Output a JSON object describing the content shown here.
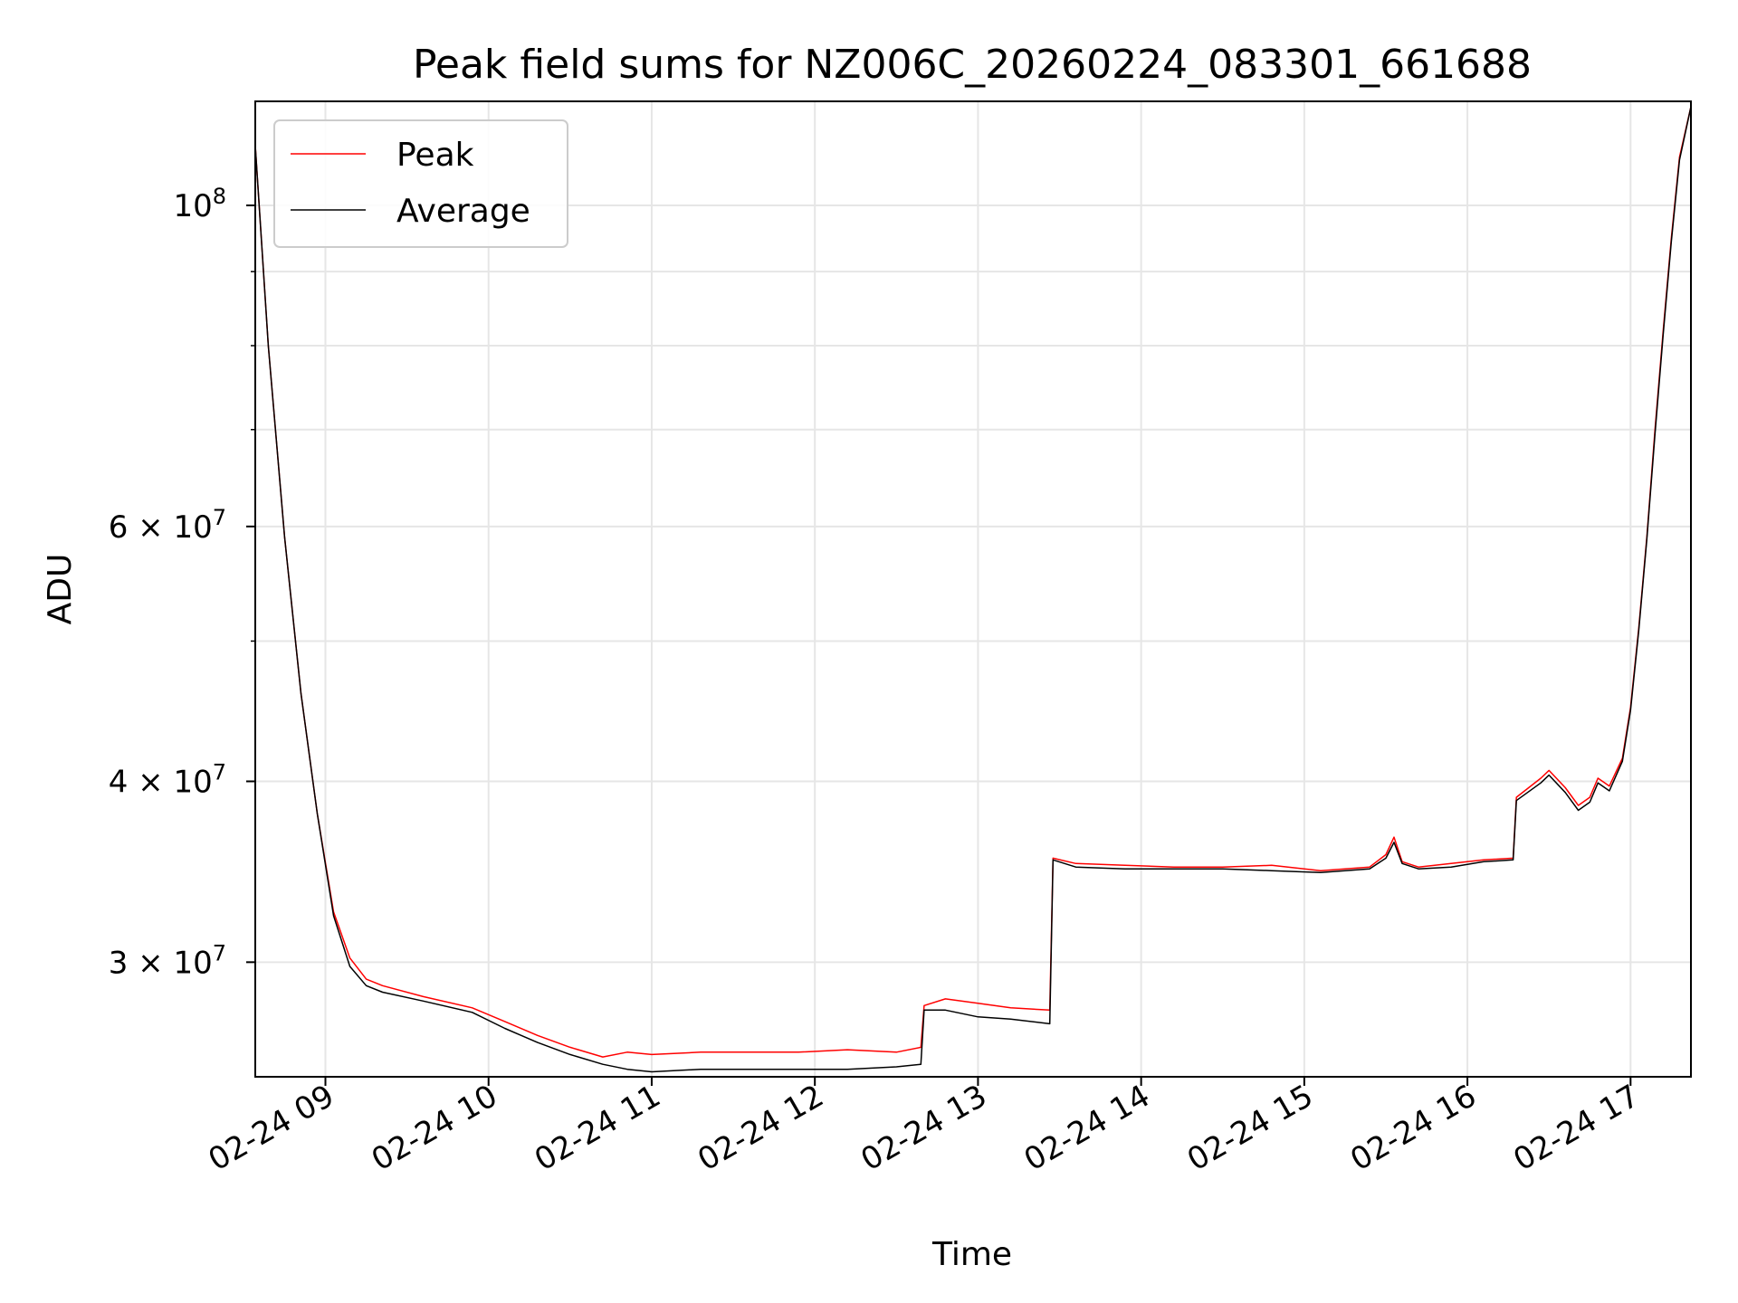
{
  "chart_data": {
    "type": "line",
    "title": "Peak field sums for NZ006C_20260224_083301_661688",
    "xlabel": "Time",
    "ylabel": "ADU",
    "yscale": "log",
    "xlim": [
      8.57,
      17.37
    ],
    "ylim": [
      25000000,
      118000000
    ],
    "grid": true,
    "legend_loc": "upper-left",
    "x_ticks": [
      {
        "value": 9,
        "label": "02-24 09"
      },
      {
        "value": 10,
        "label": "02-24 10"
      },
      {
        "value": 11,
        "label": "02-24 11"
      },
      {
        "value": 12,
        "label": "02-24 12"
      },
      {
        "value": 13,
        "label": "02-24 13"
      },
      {
        "value": 14,
        "label": "02-24 14"
      },
      {
        "value": 15,
        "label": "02-24 15"
      },
      {
        "value": 16,
        "label": "02-24 16"
      },
      {
        "value": 17,
        "label": "02-24 17"
      }
    ],
    "y_major_ticks": [
      {
        "value": 100000000,
        "mantissa": "10",
        "exp": "8"
      },
      {
        "value": 60000000,
        "mantissa": "6 × 10",
        "exp": "7"
      },
      {
        "value": 40000000,
        "mantissa": "4 × 10",
        "exp": "7"
      },
      {
        "value": 30000000,
        "mantissa": "3 × 10",
        "exp": "7"
      }
    ],
    "y_minor_ticks": [
      50000000,
      70000000,
      80000000,
      90000000
    ],
    "series": [
      {
        "name": "Peak",
        "color": "#ff0000",
        "x": [
          8.57,
          8.65,
          8.75,
          8.85,
          8.95,
          9.05,
          9.15,
          9.25,
          9.35,
          9.6,
          9.9,
          10.1,
          10.3,
          10.5,
          10.7,
          10.85,
          11.0,
          11.3,
          11.6,
          11.9,
          12.2,
          12.5,
          12.65,
          12.67,
          12.8,
          13.0,
          13.2,
          13.44,
          13.46,
          13.6,
          13.9,
          14.2,
          14.5,
          14.8,
          15.1,
          15.4,
          15.5,
          15.55,
          15.6,
          15.7,
          15.9,
          16.1,
          16.28,
          16.3,
          16.45,
          16.5,
          16.6,
          16.68,
          16.75,
          16.8,
          16.87,
          16.95,
          17.0,
          17.05,
          17.1,
          17.15,
          17.2,
          17.25,
          17.3,
          17.37
        ],
        "y": [
          110000000,
          80000000,
          59000000,
          46000000,
          38000000,
          32500000,
          30200000,
          29200000,
          28900000,
          28400000,
          27900000,
          27300000,
          26700000,
          26200000,
          25800000,
          26000000,
          25900000,
          26000000,
          26000000,
          26000000,
          26100000,
          26000000,
          26200000,
          28000000,
          28300000,
          28100000,
          27900000,
          27800000,
          35400000,
          35100000,
          35000000,
          34900000,
          34900000,
          35000000,
          34700000,
          34900000,
          35600000,
          36600000,
          35200000,
          34900000,
          35100000,
          35300000,
          35400000,
          39000000,
          40200000,
          40700000,
          39600000,
          38500000,
          39000000,
          40200000,
          39700000,
          41500000,
          45000000,
          51000000,
          59000000,
          70000000,
          82000000,
          95000000,
          108000000,
          117000000
        ]
      },
      {
        "name": "Average",
        "color": "#000000",
        "x": [
          8.57,
          8.65,
          8.75,
          8.85,
          8.95,
          9.05,
          9.15,
          9.25,
          9.35,
          9.6,
          9.9,
          10.1,
          10.3,
          10.5,
          10.7,
          10.85,
          11.0,
          11.3,
          11.6,
          11.9,
          12.2,
          12.5,
          12.65,
          12.67,
          12.8,
          13.0,
          13.2,
          13.44,
          13.46,
          13.6,
          13.9,
          14.2,
          14.5,
          14.8,
          15.1,
          15.4,
          15.5,
          15.55,
          15.6,
          15.7,
          15.9,
          16.1,
          16.28,
          16.3,
          16.45,
          16.5,
          16.6,
          16.68,
          16.75,
          16.8,
          16.87,
          16.95,
          17.0,
          17.05,
          17.1,
          17.15,
          17.2,
          17.25,
          17.3,
          17.37
        ],
        "y": [
          110000000,
          80000000,
          59000000,
          46000000,
          38000000,
          32300000,
          29800000,
          28900000,
          28600000,
          28200000,
          27700000,
          27000000,
          26400000,
          25900000,
          25500000,
          25300000,
          25200000,
          25300000,
          25300000,
          25300000,
          25300000,
          25400000,
          25500000,
          27800000,
          27800000,
          27500000,
          27400000,
          27200000,
          35300000,
          34900000,
          34800000,
          34800000,
          34800000,
          34700000,
          34600000,
          34800000,
          35400000,
          36300000,
          35100000,
          34800000,
          34900000,
          35200000,
          35300000,
          38800000,
          39900000,
          40400000,
          39300000,
          38200000,
          38700000,
          39900000,
          39400000,
          41300000,
          44800000,
          50800000,
          58800000,
          69500000,
          81500000,
          94500000,
          107500000,
          117000000
        ]
      }
    ]
  }
}
